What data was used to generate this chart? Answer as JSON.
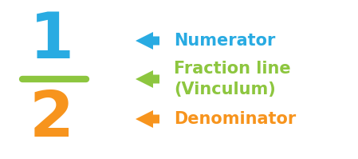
{
  "bg_color": "#ffffff",
  "numerator_text": "1",
  "numerator_color": "#29abe2",
  "denominator_text": "2",
  "denominator_color": "#f7941d",
  "vinculum_color": "#8dc63f",
  "arrow_numerator_color": "#29abe2",
  "arrow_vinculum_color": "#8dc63f",
  "arrow_denominator_color": "#f7941d",
  "label_numerator": "Numerator",
  "label_numerator_color": "#29abe2",
  "label_vinculum_line1": "Fraction line",
  "label_vinculum_line2": "(Vinculum)",
  "label_vinculum_color": "#8dc63f",
  "label_denominator": "Denominator",
  "label_denominator_color": "#f7941d",
  "fig_width": 4.49,
  "fig_height": 1.99
}
